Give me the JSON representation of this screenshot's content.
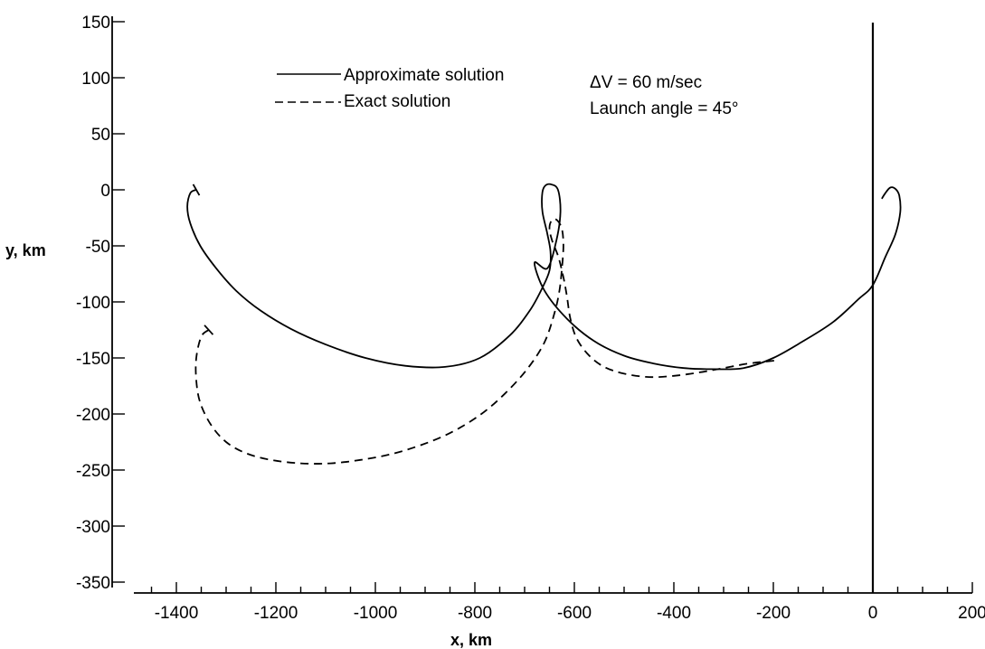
{
  "chart_data": {
    "type": "line",
    "title": "",
    "xlabel": "x, km",
    "ylabel": "y, km",
    "xlim": [
      -1500,
      200
    ],
    "ylim": [
      -350,
      150
    ],
    "x_ticks": [
      -1400,
      -1200,
      -1000,
      -800,
      -600,
      -400,
      -200,
      0,
      200
    ],
    "x_tick_labels": [
      "-1400",
      "-1200",
      "-1000",
      "-800",
      "-600",
      "-400",
      "-200",
      "0",
      "200"
    ],
    "x_minor_step": 50,
    "y_ticks": [
      150,
      100,
      50,
      0,
      -50,
      -100,
      -150,
      -200,
      -250,
      -300,
      -350
    ],
    "y_tick_labels": [
      "150",
      "100",
      "50",
      "0",
      "-50",
      "-100",
      "-150",
      "-200",
      "-250",
      "-300",
      "-350"
    ],
    "grid": false,
    "legend_position": "top-center",
    "annotations": [
      "ΔV = 60  m/sec",
      "Launch angle = 45°"
    ],
    "series": [
      {
        "name": "Approximate solution",
        "style": "solid",
        "color": "#000000",
        "x": [
          -1360,
          -1372,
          -1378,
          -1372,
          -1352,
          -1320,
          -1280,
          -1230,
          -1170,
          -1100,
          -1020,
          -940,
          -860,
          -790,
          -730,
          -690,
          -665,
          -650,
          -648,
          -655,
          -664,
          -665,
          -660,
          -648,
          -633,
          -628,
          -636,
          -654,
          -680,
          -660,
          -615,
          -560,
          -500,
          -440,
          -380,
          -320,
          -260,
          -200,
          -140,
          -80,
          -30,
          0,
          25,
          45,
          55,
          53,
          45,
          35,
          25,
          18
        ],
        "y": [
          0,
          -3,
          -15,
          -30,
          -50,
          -70,
          -90,
          -108,
          -124,
          -138,
          -150,
          -157,
          -158,
          -150,
          -130,
          -108,
          -88,
          -72,
          -55,
          -38,
          -20,
          -5,
          3,
          5,
          0,
          -20,
          -45,
          -70,
          -65,
          -90,
          -115,
          -135,
          -148,
          -155,
          -159,
          -160,
          -159,
          -150,
          -135,
          -118,
          -98,
          -85,
          -60,
          -40,
          -20,
          -5,
          1,
          2,
          -3,
          -8
        ]
      },
      {
        "name": "Exact solution",
        "style": "dashed",
        "color": "#000000",
        "x": [
          -1335,
          -1350,
          -1360,
          -1360,
          -1352,
          -1330,
          -1300,
          -1260,
          -1210,
          -1150,
          -1090,
          -1030,
          -970,
          -910,
          -850,
          -790,
          -740,
          -695,
          -660,
          -640,
          -630,
          -625,
          -622,
          -625,
          -635,
          -645,
          -650,
          -645,
          -632,
          -622,
          -615,
          -608,
          -595,
          -570,
          -540,
          -500,
          -450,
          -400,
          -350,
          -300,
          -250,
          -210,
          -190
        ],
        "y": [
          -125,
          -131,
          -150,
          -170,
          -190,
          -210,
          -225,
          -235,
          -241,
          -244,
          -244,
          -241,
          -236,
          -228,
          -217,
          -201,
          -182,
          -160,
          -136,
          -110,
          -90,
          -70,
          -50,
          -35,
          -27,
          -27,
          -34,
          -45,
          -60,
          -78,
          -95,
          -115,
          -133,
          -148,
          -158,
          -164,
          -167,
          -166,
          -163,
          -159,
          -155,
          -153,
          -152
        ]
      }
    ]
  }
}
